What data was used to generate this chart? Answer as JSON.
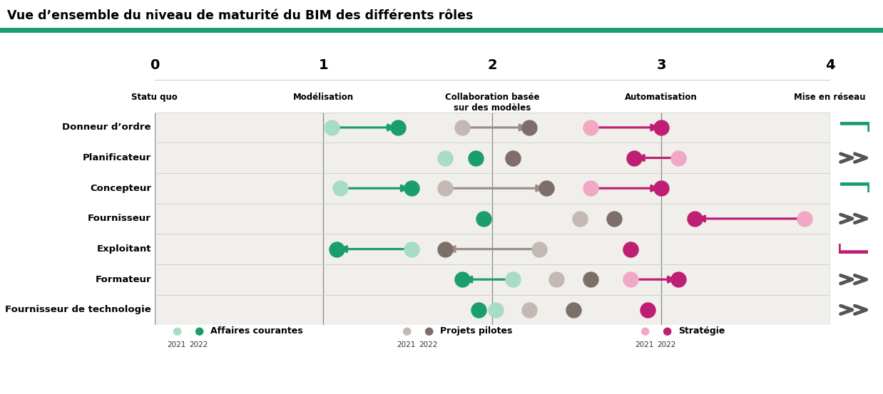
{
  "title": "Vue d’ensemble du niveau de maturité du BIM des différents rôles",
  "roles": [
    "Donneur d’ordre",
    "Planificateur",
    "Concepteur",
    "Fournisseur",
    "Exploitant",
    "Formateur",
    "Fournisseur de technologie"
  ],
  "level_numbers": [
    "0",
    "1",
    "2",
    "3",
    "4"
  ],
  "level_sublabels": [
    "Statu quo",
    "Modélisation",
    "Collaboration basée\nsur des modèles",
    "Automatisation",
    "Mise en réseau"
  ],
  "color_ac_2021": "#a8dcc5",
  "color_ac_2022": "#1b9e6e",
  "color_pp_2021": "#c4b8b4",
  "color_pp_2022": "#7d6e6a",
  "color_st_2021": "#f0a8c4",
  "color_st_2022": "#bf1f72",
  "arrow_ac_color": "#1b9e6e",
  "arrow_pp_color": "#9a8e8a",
  "arrow_st_color": "#bf1f72",
  "green_line_color": "#1b9e6e",
  "bg_color": "#f0efeb",
  "rows": [
    {
      "role": "Donneur d’ordre",
      "ac_21": 1.05,
      "ac_22": 1.44,
      "pp_21": 1.82,
      "pp_22": 2.22,
      "st_21": 2.58,
      "st_22": 3.0,
      "ac_arrow": true,
      "pp_arrow": true,
      "st_arrow": true,
      "ac_dir": 1,
      "pp_dir": 1,
      "st_dir": 1,
      "icon": "corner_green"
    },
    {
      "role": "Planificateur",
      "ac_21": 1.72,
      "ac_22": 1.9,
      "pp_21": 2.12,
      "pp_22": 2.12,
      "st_21": 3.1,
      "st_22": 2.84,
      "ac_arrow": false,
      "pp_arrow": false,
      "st_arrow": true,
      "ac_dir": 1,
      "pp_dir": 0,
      "st_dir": -1,
      "icon": "chevron_gray"
    },
    {
      "role": "Concepteur",
      "ac_21": 1.1,
      "ac_22": 1.52,
      "pp_21": 1.72,
      "pp_22": 2.32,
      "st_21": 2.58,
      "st_22": 3.0,
      "ac_arrow": true,
      "pp_arrow": true,
      "st_arrow": true,
      "ac_dir": 1,
      "pp_dir": 1,
      "st_dir": 1,
      "icon": "corner_green"
    },
    {
      "role": "Fournisseur",
      "ac_21": null,
      "ac_22": 1.95,
      "pp_21": 2.52,
      "pp_22": 2.72,
      "st_21": 3.85,
      "st_22": 3.2,
      "ac_arrow": false,
      "pp_arrow": false,
      "st_arrow": true,
      "ac_dir": 0,
      "pp_dir": 0,
      "st_dir": -1,
      "icon": "chevron_gray"
    },
    {
      "role": "Exploitant",
      "ac_21": 1.52,
      "ac_22": 1.08,
      "pp_21": 2.28,
      "pp_22": 1.72,
      "st_21": 2.82,
      "st_22": 2.82,
      "ac_arrow": true,
      "pp_arrow": true,
      "st_arrow": false,
      "ac_dir": -1,
      "pp_dir": -1,
      "st_dir": 0,
      "icon": "corner_pink"
    },
    {
      "role": "Formateur",
      "ac_21": 2.12,
      "ac_22": 1.82,
      "pp_21": 2.38,
      "pp_22": 2.58,
      "st_21": 2.82,
      "st_22": 3.1,
      "ac_arrow": true,
      "pp_arrow": false,
      "st_arrow": true,
      "ac_dir": -1,
      "pp_dir": 0,
      "st_dir": 1,
      "icon": "chevron_gray"
    },
    {
      "role": "Fournisseur de technologie",
      "ac_21": 2.02,
      "ac_22": 1.92,
      "pp_21": 2.22,
      "pp_22": 2.48,
      "st_21": null,
      "st_22": 2.92,
      "ac_arrow": false,
      "pp_arrow": false,
      "st_arrow": false,
      "ac_dir": -1,
      "pp_dir": 0,
      "st_dir": 0,
      "icon": "chevron_gray"
    }
  ],
  "legend_affaires": "Affaires courantes",
  "legend_pilotes": "Projets pilotes",
  "legend_strategie": "Stratégie",
  "year_2021": "2021",
  "year_2022": "2022"
}
